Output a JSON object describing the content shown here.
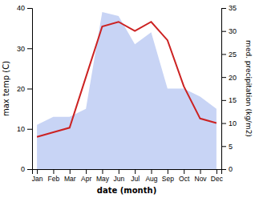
{
  "chart_data": {
    "type": "line",
    "categories": [
      "Jan",
      "Feb",
      "Mar",
      "Apr",
      "May",
      "Jun",
      "Jul",
      "Aug",
      "Sep",
      "Oct",
      "Nov",
      "Dec"
    ],
    "series": [
      {
        "type": "area",
        "color": "#c8d4f5",
        "values": [
          11,
          13,
          13,
          15,
          39,
          38,
          31,
          34,
          20,
          20,
          18,
          15
        ]
      },
      {
        "type": "line",
        "color": "#cc2222",
        "axis": "y2",
        "values": [
          7,
          8,
          9,
          20,
          31,
          32,
          30,
          32,
          28,
          18,
          11,
          10
        ]
      }
    ],
    "xlabel": "date (month)",
    "ylabel": "max temp (C)",
    "y2label": "med. precipitation (kg/m2)",
    "ylim": [
      0,
      40
    ],
    "yticks": [
      0,
      10,
      20,
      30,
      40
    ],
    "y2lim": [
      0,
      35
    ],
    "y2ticks": [
      0,
      5,
      10,
      15,
      20,
      25,
      30,
      35
    ],
    "grid": false
  }
}
